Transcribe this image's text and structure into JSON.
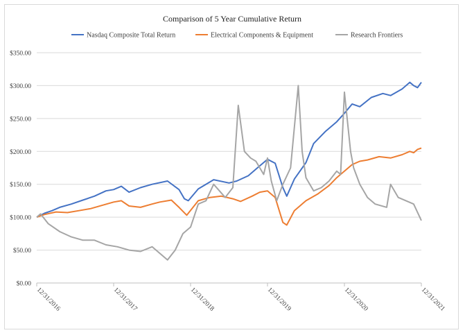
{
  "chart_data": {
    "type": "line",
    "title": "Comparison of 5 Year Cumulative Return",
    "xlabel": "",
    "ylabel": "",
    "legend_position": "top",
    "ylim": [
      0,
      350
    ],
    "xlim": [
      2017.0,
      2022.0
    ],
    "grid": true,
    "y_ticks": [
      0,
      50,
      100,
      150,
      200,
      250,
      300,
      350
    ],
    "y_tick_labels": [
      "$0.00",
      "$50.00",
      "$100.00",
      "$150.00",
      "$200.00",
      "$250.00",
      "$300.00",
      "$350.00"
    ],
    "x_ticks": [
      2017.0,
      2018.0,
      2019.0,
      2020.0,
      2021.0,
      2022.0
    ],
    "x_tick_labels": [
      "12/31/2016",
      "12/31/2017",
      "12/31/2018",
      "12/31/2019",
      "12/31/2020",
      "12/31/2021"
    ],
    "series": [
      {
        "name": "Nasdaq Composite Total Return",
        "color": "#4472c4",
        "x": [
          2017.0,
          2017.1,
          2017.2,
          2017.3,
          2017.45,
          2017.6,
          2017.75,
          2017.9,
          2018.0,
          2018.1,
          2018.2,
          2018.35,
          2018.5,
          2018.7,
          2018.85,
          2018.92,
          2018.97,
          2019.1,
          2019.3,
          2019.5,
          2019.6,
          2019.75,
          2019.85,
          2020.0,
          2020.1,
          2020.2,
          2020.25,
          2020.35,
          2020.5,
          2020.6,
          2020.75,
          2020.9,
          2021.0,
          2021.1,
          2021.2,
          2021.35,
          2021.5,
          2021.6,
          2021.75,
          2021.85,
          2021.9,
          2021.95,
          2022.0
        ],
        "y": [
          100,
          106,
          110,
          115,
          120,
          126,
          132,
          140,
          142,
          147,
          138,
          145,
          150,
          155,
          142,
          128,
          125,
          143,
          157,
          152,
          155,
          163,
          173,
          188,
          182,
          145,
          132,
          158,
          183,
          212,
          230,
          245,
          258,
          272,
          268,
          282,
          288,
          285,
          295,
          305,
          300,
          297,
          305
        ]
      },
      {
        "name": "Electrical Components & Equipment",
        "color": "#ed7d31",
        "x": [
          2017.0,
          2017.1,
          2017.25,
          2017.4,
          2017.55,
          2017.7,
          2017.85,
          2018.0,
          2018.1,
          2018.2,
          2018.35,
          2018.5,
          2018.6,
          2018.75,
          2018.85,
          2018.95,
          2019.1,
          2019.25,
          2019.4,
          2019.55,
          2019.65,
          2019.8,
          2019.9,
          2020.0,
          2020.1,
          2020.2,
          2020.25,
          2020.35,
          2020.5,
          2020.65,
          2020.8,
          2020.9,
          2021.0,
          2021.1,
          2021.2,
          2021.3,
          2021.45,
          2021.6,
          2021.75,
          2021.85,
          2021.9,
          2021.95,
          2022.0
        ],
        "y": [
          100,
          104,
          108,
          107,
          110,
          113,
          118,
          123,
          125,
          117,
          115,
          120,
          123,
          126,
          115,
          103,
          125,
          130,
          132,
          128,
          124,
          132,
          138,
          140,
          130,
          92,
          88,
          110,
          125,
          135,
          148,
          160,
          170,
          180,
          185,
          187,
          192,
          190,
          195,
          200,
          198,
          203,
          205
        ]
      },
      {
        "name": "Research Frontiers",
        "color": "#a5a5a5",
        "x": [
          2017.0,
          2017.05,
          2017.15,
          2017.3,
          2017.45,
          2017.6,
          2017.75,
          2017.9,
          2018.05,
          2018.2,
          2018.35,
          2018.5,
          2018.6,
          2018.7,
          2018.8,
          2018.9,
          2019.0,
          2019.1,
          2019.2,
          2019.3,
          2019.45,
          2019.55,
          2019.62,
          2019.7,
          2019.78,
          2019.85,
          2019.95,
          2020.0,
          2020.05,
          2020.12,
          2020.2,
          2020.3,
          2020.4,
          2020.45,
          2020.5,
          2020.6,
          2020.7,
          2020.8,
          2020.9,
          2020.95,
          2021.0,
          2021.08,
          2021.12,
          2021.2,
          2021.3,
          2021.4,
          2021.55,
          2021.6,
          2021.7,
          2021.8,
          2021.9,
          2022.0
        ],
        "y": [
          100,
          105,
          90,
          78,
          70,
          65,
          65,
          58,
          55,
          50,
          48,
          55,
          45,
          35,
          50,
          75,
          85,
          120,
          125,
          150,
          130,
          145,
          270,
          200,
          190,
          185,
          165,
          190,
          155,
          125,
          150,
          175,
          300,
          200,
          160,
          140,
          145,
          155,
          170,
          165,
          290,
          200,
          175,
          150,
          130,
          120,
          115,
          150,
          130,
          125,
          120,
          95
        ]
      }
    ]
  }
}
